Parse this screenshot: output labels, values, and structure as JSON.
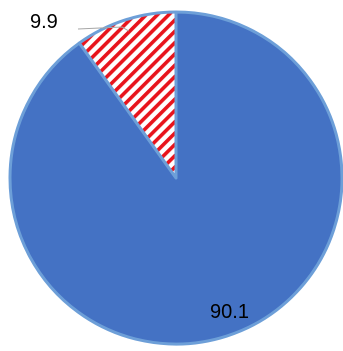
{
  "chart_data": {
    "type": "pie",
    "slices": [
      {
        "value": 9.9,
        "label": "9.9",
        "fill": "hatch",
        "color": "#e8141c"
      },
      {
        "value": 90.1,
        "label": "90.1",
        "fill": "solid",
        "color": "#4472c4"
      }
    ],
    "start_angle_deg": 0,
    "direction": "counterclockwise",
    "outline_color": "#6d9fd8",
    "leader_line_color": "#a6a6a6",
    "legend": "none"
  }
}
